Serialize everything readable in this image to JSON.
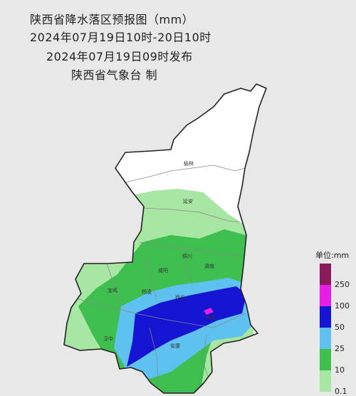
{
  "header": {
    "title": "陕西省降水落区预报图（mm）",
    "period": "2024年07月19日10时-20日10时",
    "issued": "2024年07月19日09时发布",
    "issuer": "陕西省气象台  制"
  },
  "cities": [
    "榆林",
    "延安",
    "铜川",
    "渭南",
    "咸阳",
    "宝鸡",
    "杨凌",
    "西安",
    "商洛",
    "汉中",
    "安康"
  ],
  "legend": {
    "unit_label": "单位:mm",
    "levels": [
      {
        "label": "250",
        "color": "#8b1a5a"
      },
      {
        "label": "100",
        "color": "#e61ee6"
      },
      {
        "label": "50",
        "color": "#1414d2"
      },
      {
        "label": "25",
        "color": "#5ec1f0"
      },
      {
        "label": "10",
        "color": "#3fbf4f"
      },
      {
        "label": "0.1",
        "color": "#a8e6a3"
      }
    ]
  }
}
